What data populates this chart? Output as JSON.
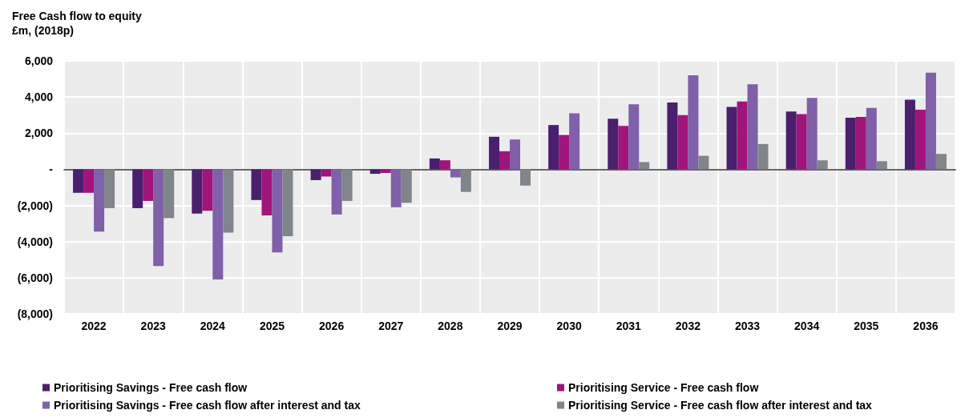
{
  "chart_data": {
    "type": "bar",
    "title": "Free Cash flow to equity",
    "subtitle": "£m, (2018p)",
    "categories": [
      "2022",
      "2023",
      "2024",
      "2025",
      "2026",
      "2027",
      "2028",
      "2029",
      "2030",
      "2031",
      "2032",
      "2033",
      "2034",
      "2035",
      "2036"
    ],
    "series": [
      {
        "name": "Prioritising Savings - Free cash flow",
        "color": "#4a1f6e",
        "values": [
          -1300,
          -2150,
          -2450,
          -1700,
          -600,
          -250,
          600,
          1800,
          2450,
          2800,
          3700,
          3450,
          3200,
          2850,
          3850
        ]
      },
      {
        "name": "Prioritising Service - Free cash flow",
        "color": "#a0157a",
        "values": [
          -1300,
          -1750,
          -2300,
          -2550,
          -400,
          -200,
          500,
          1000,
          1900,
          2400,
          3000,
          3750,
          3050,
          2900,
          3300
        ]
      },
      {
        "name": "Prioritising Savings - Free cash flow after interest and tax",
        "color": "#8060a8",
        "values": [
          -3450,
          -5350,
          -6100,
          -4600,
          -2500,
          -2100,
          -450,
          1650,
          3100,
          3600,
          5200,
          4700,
          3950,
          3400,
          5350
        ]
      },
      {
        "name": "Prioritising Service - Free cash flow after interest and tax",
        "color": "#7f858a",
        "values": [
          -2150,
          -2700,
          -3500,
          -3700,
          -1750,
          -1850,
          -1250,
          -900,
          null,
          400,
          750,
          1400,
          500,
          450,
          850
        ]
      }
    ],
    "ylim": [
      -8000,
      6000
    ],
    "yticks": [
      {
        "value": -8000,
        "label": "(8,000)"
      },
      {
        "value": -6000,
        "label": "(6,000)"
      },
      {
        "value": -4000,
        "label": "(4,000)"
      },
      {
        "value": -2000,
        "label": "(2,000)"
      },
      {
        "value": 0,
        "label": "-"
      },
      {
        "value": 2000,
        "label": "2,000"
      },
      {
        "value": 4000,
        "label": "4,000"
      },
      {
        "value": 6000,
        "label": "6,000"
      }
    ],
    "grid": true,
    "legend": "bottom"
  }
}
